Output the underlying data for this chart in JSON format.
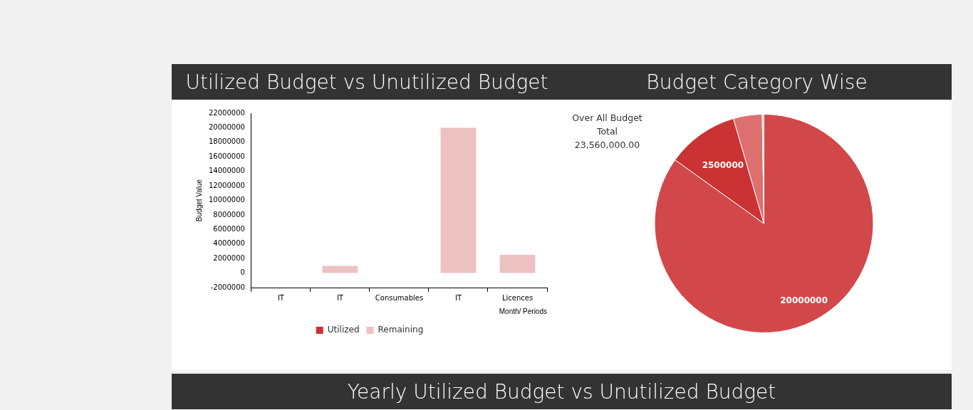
{
  "chart_data": [
    {
      "type": "bar",
      "title": "Utilized Budget vs Unutilized Budget",
      "xlabel": "Month/ Periods",
      "ylabel": "Budget Value",
      "categories": [
        "IT",
        "IT",
        "Consumables",
        "IT",
        "Licences"
      ],
      "series": [
        {
          "name": "Utilized",
          "color": "#cc3333",
          "values": [
            0,
            0,
            0,
            0,
            0
          ]
        },
        {
          "name": "Remaining",
          "color": "#edc1c1",
          "values": [
            0,
            1000000,
            0,
            20000000,
            2500000
          ]
        }
      ],
      "stacked": true,
      "ylim": [
        -2000000,
        22000000
      ],
      "yticks": [
        -2000000,
        0,
        2000000,
        4000000,
        6000000,
        8000000,
        10000000,
        12000000,
        14000000,
        16000000,
        18000000,
        20000000,
        22000000
      ],
      "grid": false,
      "legend": "bottom"
    },
    {
      "type": "pie",
      "title": "Budget Category Wise",
      "categories": [
        null,
        null,
        null,
        null
      ],
      "values": [
        20000000,
        2500000,
        1000000,
        60000
      ],
      "colors": [
        "#d2484a",
        "#cb3234",
        "#dd6f6f",
        "#efc9c9"
      ],
      "value_labels": [
        "20000000",
        "2500000",
        null,
        null
      ],
      "annotations": [
        "Over All Budget Total 23,560,000.00"
      ],
      "legend": false
    },
    {
      "type": "other",
      "title": "Yearly Utilized Budget vs Unutilized Budget"
    }
  ]
}
